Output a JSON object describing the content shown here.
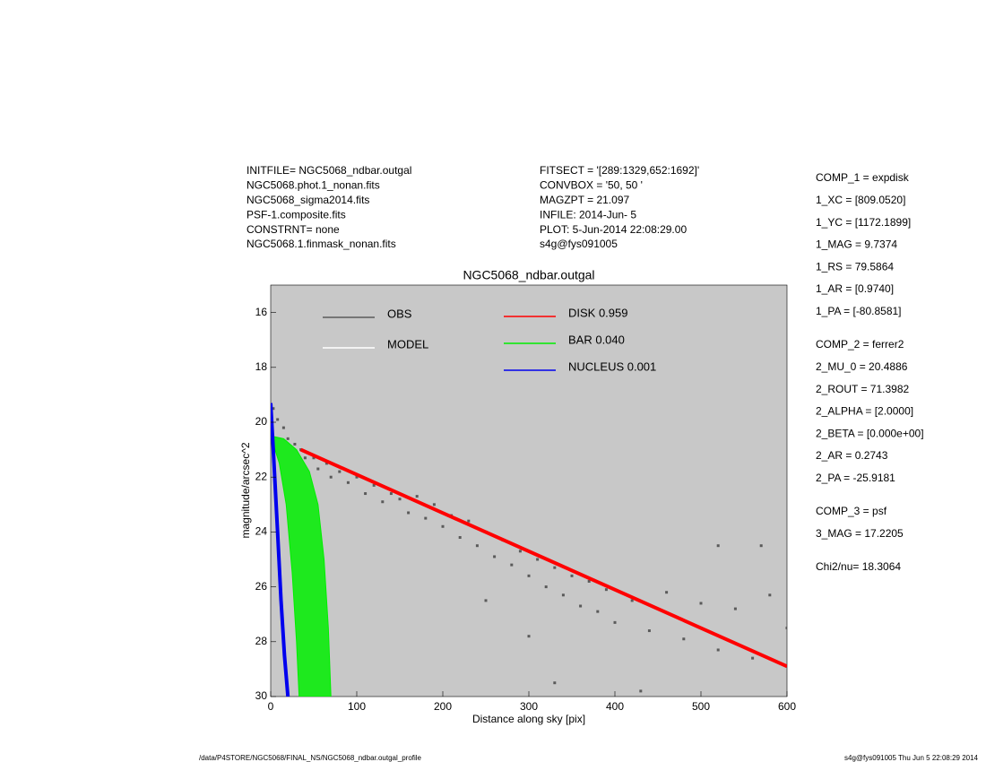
{
  "header": {
    "left": [
      "INITFILE= NGC5068_ndbar.outgal",
      "NGC5068.phot.1_nonan.fits",
      "NGC5068_sigma2014.fits",
      "PSF-1.composite.fits",
      "CONSTRNT= none",
      "NGC5068.1.finmask_nonan.fits"
    ],
    "middle": [
      "FITSECT = '[289:1329,652:1692]'",
      "CONVBOX = '50, 50  '",
      "MAGZPT =              21.097",
      "INFILE: 2014-Jun- 5",
      "PLOT:  5-Jun-2014 22:08:29.00",
      "s4g@fys091005"
    ]
  },
  "components": [
    [
      "COMP_1  = expdisk",
      "1_XC    = [809.0520]",
      "1_YC    = [1172.1899]",
      "1_MAG   = 9.7374",
      "1_RS    = 79.5864",
      "1_AR    = [0.9740]",
      "1_PA    = [-80.8581]"
    ],
    [
      "COMP_2  = ferrer2",
      "2_MU_0  = 20.4886",
      "2_ROUT  = 71.3982",
      "2_ALPHA = [2.0000]",
      "2_BETA  = [0.000e+00]",
      "2_AR    = 0.2743",
      "2_PA    = -25.9181"
    ],
    [
      "COMP_3  = psf",
      "3_MAG   = 17.2205"
    ],
    [
      "Chi2/nu=      18.3064"
    ]
  ],
  "footer": {
    "left": "/data/P4STORE/NGC5068/FINAL_NS/NGC5068_ndbar.outgal_profile",
    "right": "s4g@fys091005  Thu Jun  5 22:08:29 2014"
  },
  "chart_data": {
    "type": "scatter",
    "title": "NGC5068_ndbar.outgal",
    "x_label": "Distance along sky [pix]",
    "y_label": "magnitude/arcsec^2",
    "xlim": [
      0,
      600
    ],
    "xticks": [
      0,
      100,
      200,
      300,
      400,
      500,
      600
    ],
    "ylim": [
      15,
      30
    ],
    "yticks": [
      16,
      18,
      20,
      22,
      24,
      26,
      28,
      30
    ],
    "y_inverted": true,
    "plot_background": "#c8c8c8",
    "series": [
      {
        "name": "OBS",
        "color": "#5a5a5a",
        "style": "points",
        "x": [
          3,
          8,
          15,
          20,
          28,
          35,
          40,
          50,
          55,
          65,
          70,
          80,
          90,
          100,
          110,
          120,
          130,
          140,
          150,
          160,
          170,
          180,
          190,
          200,
          210,
          220,
          230,
          240,
          250,
          260,
          270,
          280,
          290,
          300,
          310,
          320,
          330,
          340,
          350,
          360,
          370,
          380,
          390,
          400,
          420,
          440,
          460,
          480,
          500,
          520,
          540,
          560,
          580,
          600,
          330,
          430,
          520,
          570,
          300,
          250
        ],
        "values": [
          19.5,
          19.9,
          20.2,
          20.6,
          20.8,
          21.0,
          21.3,
          21.3,
          21.7,
          21.5,
          22.0,
          21.8,
          22.2,
          22.0,
          22.6,
          22.3,
          22.9,
          22.6,
          22.8,
          23.3,
          22.7,
          23.5,
          23.0,
          23.8,
          23.4,
          24.2,
          23.6,
          24.5,
          24.0,
          24.9,
          24.3,
          25.2,
          24.7,
          25.6,
          25.0,
          26.0,
          25.3,
          26.3,
          25.6,
          26.7,
          25.8,
          26.9,
          26.1,
          27.3,
          26.5,
          27.6,
          26.2,
          27.9,
          26.6,
          28.3,
          26.8,
          28.6,
          26.3,
          27.5,
          29.5,
          29.8,
          24.5,
          24.5,
          27.8,
          26.5
        ]
      },
      {
        "name": "MODEL",
        "color": "#ffffff",
        "style": "line",
        "x": [],
        "values": []
      },
      {
        "name": "DISK  0.959",
        "color": "#ff0000",
        "style": "line",
        "x": [
          35,
          600
        ],
        "values": [
          21.0,
          28.9
        ]
      },
      {
        "name": "BAR  0.040",
        "color": "#00ee00",
        "style": "area",
        "x": [
          0,
          15,
          30,
          45,
          55,
          62,
          67,
          70,
          33,
          30,
          25,
          18,
          10,
          0
        ],
        "values": [
          20.5,
          20.6,
          21.0,
          21.8,
          23.0,
          25.0,
          27.5,
          30,
          30,
          28,
          25.5,
          23,
          21.5,
          20.5
        ]
      },
      {
        "name": "NUCLEUS  0.001",
        "color": "#0000ee",
        "style": "line",
        "x": [
          0,
          3,
          8,
          12,
          16,
          20
        ],
        "values": [
          19.3,
          21,
          24,
          26.5,
          28.5,
          30
        ]
      }
    ]
  }
}
